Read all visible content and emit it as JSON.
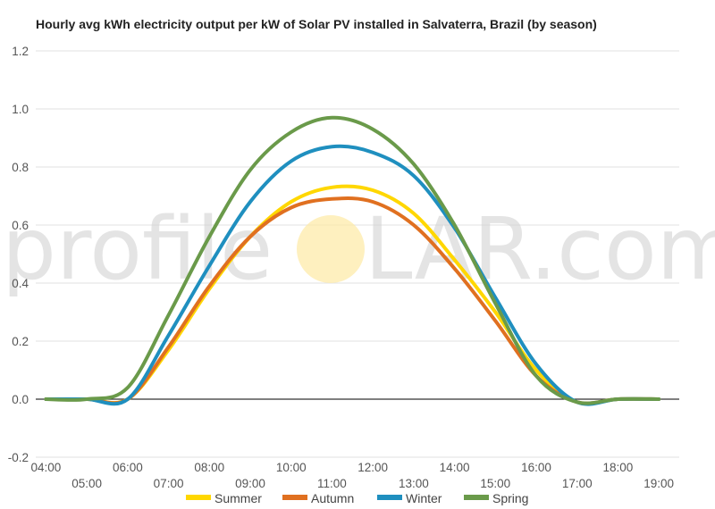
{
  "chart_data": {
    "type": "line",
    "title": "Hourly avg kWh electricity output per kW of Solar PV installed in Salvaterra, Brazil (by season)",
    "xlabel": "",
    "ylabel": "",
    "ylim": [
      -0.2,
      1.2
    ],
    "yticks": [
      "1.2",
      "1.0",
      "0.8",
      "0.6",
      "0.4",
      "0.2",
      "0.0",
      "-0.2"
    ],
    "ytick_values": [
      1.2,
      1.0,
      0.8,
      0.6,
      0.4,
      0.2,
      0.0,
      -0.2
    ],
    "x": [
      4,
      5,
      6,
      7,
      8,
      9,
      10,
      11,
      12,
      13,
      14,
      15,
      16,
      17,
      18,
      19
    ],
    "xtick_labels": [
      "04:00",
      "05:00",
      "06:00",
      "07:00",
      "08:00",
      "09:00",
      "10:00",
      "11:00",
      "12:00",
      "13:00",
      "14:00",
      "15:00",
      "16:00",
      "17:00",
      "18:00",
      "19:00"
    ],
    "grid": true,
    "legend_position": "bottom",
    "series": [
      {
        "name": "Summer",
        "color": "#FFD700",
        "values": [
          0.0,
          0.0,
          0.0,
          0.17,
          0.38,
          0.56,
          0.68,
          0.73,
          0.72,
          0.64,
          0.48,
          0.3,
          0.1,
          -0.01,
          0.0,
          0.0
        ]
      },
      {
        "name": "Autumn",
        "color": "#E07020",
        "values": [
          0.0,
          0.0,
          0.0,
          0.18,
          0.39,
          0.56,
          0.66,
          0.69,
          0.68,
          0.6,
          0.45,
          0.27,
          0.08,
          -0.01,
          0.0,
          0.0
        ]
      },
      {
        "name": "Winter",
        "color": "#1F8FBF",
        "values": [
          0.0,
          0.0,
          0.0,
          0.22,
          0.46,
          0.68,
          0.82,
          0.87,
          0.85,
          0.77,
          0.59,
          0.35,
          0.12,
          -0.01,
          0.0,
          0.0
        ]
      },
      {
        "name": "Spring",
        "color": "#6A9A4A",
        "values": [
          0.0,
          0.0,
          0.04,
          0.29,
          0.56,
          0.79,
          0.92,
          0.97,
          0.93,
          0.81,
          0.6,
          0.33,
          0.08,
          -0.01,
          0.0,
          0.0
        ]
      }
    ]
  },
  "watermark": {
    "left": "profile",
    "right": "LAR.com"
  }
}
